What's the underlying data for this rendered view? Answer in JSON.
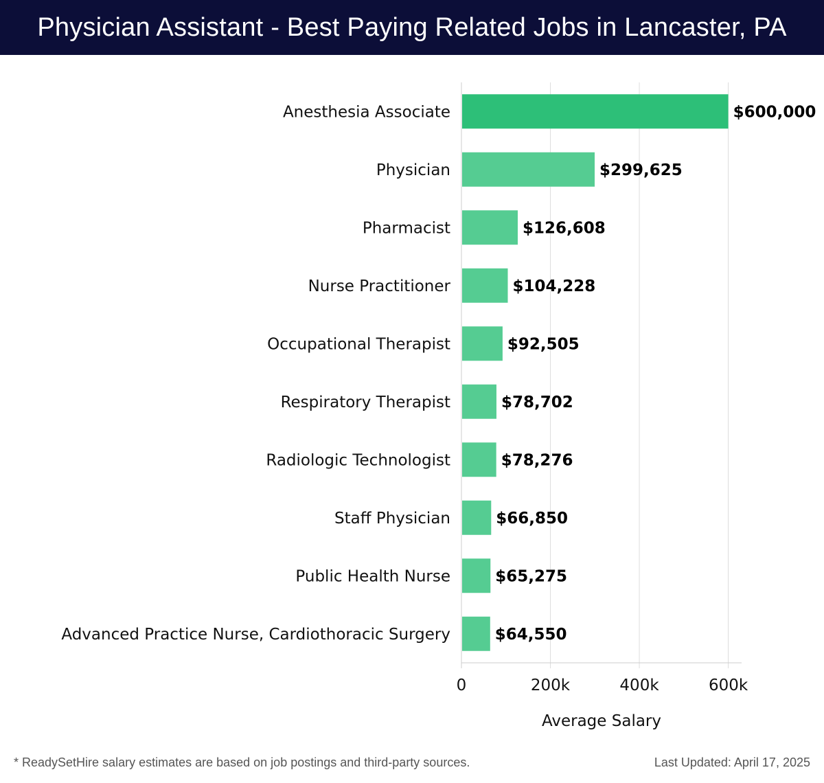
{
  "header": {
    "title": "Physician Assistant - Best Paying Related Jobs in Lancaster, PA"
  },
  "chart_data": {
    "type": "bar",
    "orientation": "horizontal",
    "categories": [
      "Anesthesia Associate",
      "Physician",
      "Pharmacist",
      "Nurse Practitioner",
      "Occupational Therapist",
      "Respiratory Therapist",
      "Radiologic Technologist",
      "Staff Physician",
      "Public Health Nurse",
      "Advanced Practice Nurse, Cardiothoracic Surgery"
    ],
    "values": [
      600000,
      299625,
      126608,
      104228,
      92505,
      78702,
      78276,
      66850,
      65275,
      64550
    ],
    "value_labels": [
      "$600,000",
      "$299,625",
      "$126,608",
      "$104,228",
      "$92,505",
      "$78,702",
      "$78,276",
      "$66,850",
      "$65,275",
      "$64,550"
    ],
    "xlabel": "Average Salary",
    "xlim": [
      0,
      630000
    ],
    "xticks": [
      0,
      200000,
      400000,
      600000
    ],
    "xtick_labels": [
      "0",
      "200k",
      "400k",
      "600k"
    ],
    "grid": true,
    "colors": {
      "top_bar": "#2dbf78",
      "bars": "#55cc92",
      "grid": "#dddddd",
      "axis": "#cccccc"
    }
  },
  "footer": {
    "note": "* ReadySetHire salary estimates are based on job postings and third-party sources.",
    "updated": "Last Updated: April 17, 2025"
  }
}
